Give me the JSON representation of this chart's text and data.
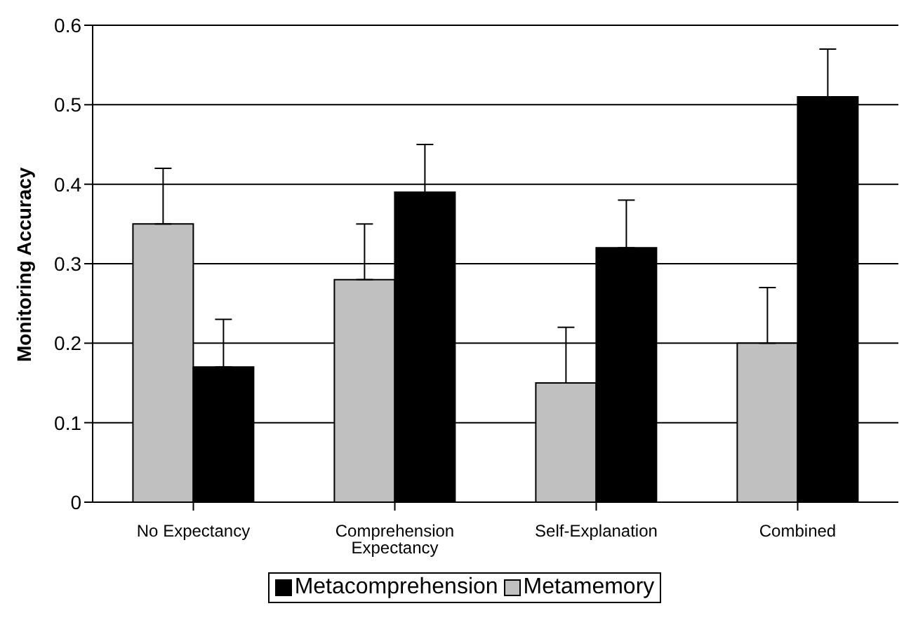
{
  "chart_data": {
    "type": "bar",
    "ylabel": "Monitoring Accuracy",
    "categories": [
      "No Expectancy",
      "Comprehension Expectancy",
      "Self-Explanation",
      "Combined"
    ],
    "series": [
      {
        "name": "Metamemory",
        "color": "#c0c0c0",
        "values": [
          0.35,
          0.28,
          0.15,
          0.2
        ],
        "errors": [
          [
            0.35,
            0.42
          ],
          [
            0.28,
            0.35
          ],
          [
            0.15,
            0.22
          ],
          [
            0.2,
            0.27
          ]
        ]
      },
      {
        "name": "Metacomprehension",
        "color": "#000000",
        "values": [
          0.17,
          0.39,
          0.32,
          0.51
        ],
        "errors": [
          [
            0.17,
            0.23
          ],
          [
            0.39,
            0.45
          ],
          [
            0.32,
            0.38
          ],
          [
            0.51,
            0.57
          ]
        ]
      }
    ],
    "ylim": [
      0,
      0.6
    ],
    "yticks": [
      0,
      0.1,
      0.2,
      0.3,
      0.4,
      0.5,
      0.6
    ],
    "grid": "y",
    "legend": "bottom"
  }
}
